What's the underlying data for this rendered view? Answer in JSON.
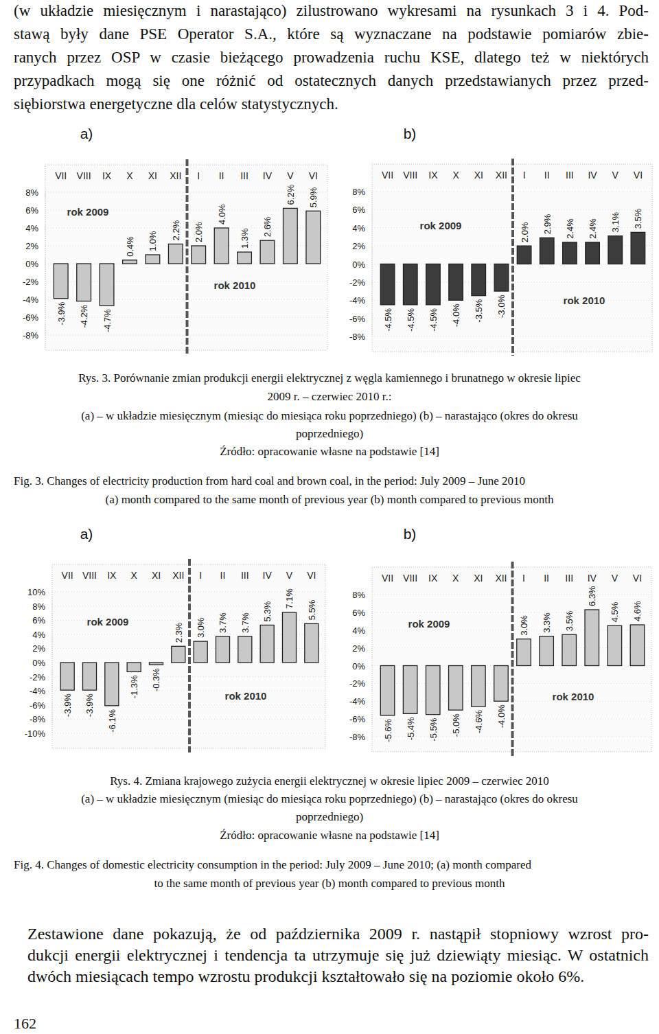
{
  "document": {
    "top_paragraph": [
      "(w układzie miesięcznym i narastająco) zilustrowano wykresami na rysunkach 3 i 4. Pod-",
      "stawą były dane PSE Operator S.A., które są wyznaczane na podstawie pomiarów zbie-",
      "ranych przez OSP w czasie bieżącego prowadzenia ruchu KSE, dlatego też w niektórych",
      "przypadkach mogą się one różnić od ostatecznych danych przedstawianych przez przed-",
      "siębiorstwa energetyczne dla celów statystycznych."
    ],
    "figures": [
      {
        "caption_pl": [
          "Rys. 3. Porównanie zmian produkcji energii elektrycznej z węgla kamiennego i brunatnego w okresie  lipiec",
          "2009 r. – czerwiec 2010 r.:",
          "(a) – w układzie miesięcznym (miesiąc do miesiąca roku poprzedniego) (b) – narastająco (okres do okresu",
          "poprzedniego)",
          "Źródło:  opracowanie własne na podstawie [14]"
        ],
        "caption_en": [
          "Fig. 3. Changes of electricity production from hard coal and brown coal, in the period: July 2009 – June 2010",
          "(a) month compared to the same month of previous year (b) month compared to previous month"
        ]
      },
      {
        "caption_pl": [
          "Rys. 4. Zmiana krajowego zużycia energii elektrycznej w okresie lipiec 2009 – czerwiec 2010",
          "(a) – w układzie miesięcznym (miesiąc do miesiąca roku poprzedniego) (b) – narastająco (okres do okresu",
          "poprzedniego)",
          "Źródło:  opracowanie własne na podstawie [14]"
        ],
        "caption_en": [
          "Fig. 4. Changes of domestic electricity consumption in the period: July 2009 – June 2010; (a) month compared",
          "to the same month of previous year (b) month compared to previous month"
        ]
      }
    ],
    "bottom_paragraph": [
      "Zestawione dane pokazują, że od października 2009 r. nastąpił stopniowy wzrost pro-",
      "dukcji energii elektrycznej i tendencja ta utrzymuje się już dziewiąty miesiąc. W ostatnich",
      "dwóch miesiącach tempo wzrostu produkcji kształtowało się na poziomie około 6%."
    ],
    "page_number": 162
  },
  "chart_data": [
    {
      "type": "bar",
      "title": "a)",
      "annotations": [
        "rok 2009",
        "rok 2010"
      ],
      "categories": [
        "VII",
        "VIII",
        "IX",
        "X",
        "XI",
        "XII",
        "I",
        "II",
        "III",
        "IV",
        "V",
        "VI"
      ],
      "values": [
        -3.9,
        -4.2,
        -4.7,
        0.4,
        1.0,
        2.2,
        2.0,
        4.0,
        1.3,
        2.6,
        6.2,
        5.9
      ],
      "value_labels": [
        "-3.9%",
        "-4.2%",
        "-4.7%",
        "0.4%",
        "1.0%",
        "2.2%",
        "2.0%",
        "4.0%",
        "1.3%",
        "2.6%",
        "6.2%",
        "5.9%"
      ],
      "color": "#c8c8c8",
      "ylim": [
        -8,
        8
      ],
      "yticks": [
        {
          "value": 8,
          "label": "8%"
        },
        {
          "value": 6,
          "label": "6%"
        },
        {
          "value": 4,
          "label": "4%"
        },
        {
          "value": 2,
          "label": "2%"
        },
        {
          "value": 0,
          "label": "0%"
        },
        {
          "value": -2,
          "label": "-2%"
        },
        {
          "value": -4,
          "label": "-4%"
        },
        {
          "value": -6,
          "label": "-6%"
        },
        {
          "value": -8,
          "label": "-8%"
        }
      ],
      "grid": true,
      "data_labels": true
    },
    {
      "type": "bar",
      "title": "b)",
      "annotations": [
        "rok 2009",
        "rok 2010"
      ],
      "categories": [
        "VII",
        "VIII",
        "IX",
        "X",
        "XI",
        "XII",
        "I",
        "II",
        "III",
        "IV",
        "V",
        "VI"
      ],
      "values": [
        -4.5,
        -4.5,
        -4.5,
        -4.0,
        -3.5,
        -3.0,
        2.0,
        2.9,
        2.4,
        2.4,
        3.1,
        3.5
      ],
      "value_labels": [
        "-4.5%",
        "-4.5%",
        "-4.5%",
        "-4.0%",
        "-3.5%",
        "-3.0%",
        "2.0%",
        "2.9%",
        "2.4%",
        "2.4%",
        "3.1%",
        "3.5%"
      ],
      "color": "#3c3c3c",
      "ylim": [
        -8,
        8
      ],
      "yticks": [
        {
          "value": 8,
          "label": "8%"
        },
        {
          "value": 6,
          "label": "6%"
        },
        {
          "value": 4,
          "label": "4%"
        },
        {
          "value": 2,
          "label": "2%"
        },
        {
          "value": 0,
          "label": "0%"
        },
        {
          "value": -2,
          "label": "-2%"
        },
        {
          "value": -4,
          "label": "-4%"
        },
        {
          "value": -6,
          "label": "-6%"
        },
        {
          "value": -8,
          "label": "-8%"
        }
      ],
      "grid": true,
      "data_labels": true
    },
    {
      "type": "bar",
      "title": "a)",
      "annotations": [
        "rok 2009",
        "rok 2010"
      ],
      "categories": [
        "VII",
        "VIII",
        "IX",
        "X",
        "XI",
        "XII",
        "I",
        "II",
        "III",
        "IV",
        "V",
        "VI"
      ],
      "values": [
        -3.9,
        -3.9,
        -6.1,
        -1.3,
        -0.3,
        2.3,
        3.0,
        3.7,
        3.7,
        5.3,
        7.1,
        5.5
      ],
      "value_labels": [
        "-3.9%",
        "-3.9%",
        "-6.1%",
        "-1.3%",
        "-0.3%",
        "2.3%",
        "3.0%",
        "3.7%",
        "3.7%",
        "5.3%",
        "7.1%",
        "5.5%"
      ],
      "color": "#c8c8c8",
      "ylim": [
        -10,
        10
      ],
      "yticks": [
        {
          "value": 10,
          "label": "10%"
        },
        {
          "value": 8,
          "label": "8%"
        },
        {
          "value": 6,
          "label": "6%"
        },
        {
          "value": 4,
          "label": "4%"
        },
        {
          "value": 2,
          "label": "2%"
        },
        {
          "value": 0,
          "label": "0%"
        },
        {
          "value": -2,
          "label": "-2%"
        },
        {
          "value": -4,
          "label": "-4%"
        },
        {
          "value": -6,
          "label": "-6%"
        },
        {
          "value": -8,
          "label": "-8%"
        },
        {
          "value": -10,
          "label": "-10%"
        }
      ],
      "grid": true,
      "data_labels": true
    },
    {
      "type": "bar",
      "title": "b)",
      "annotations": [
        "rok 2009",
        "rok 2010"
      ],
      "categories": [
        "VII",
        "VIII",
        "IX",
        "X",
        "XI",
        "XII",
        "I",
        "II",
        "III",
        "IV",
        "V",
        "VI"
      ],
      "values": [
        -5.6,
        -5.4,
        -5.5,
        -5.0,
        -4.6,
        -4.0,
        3.0,
        3.3,
        3.5,
        6.3,
        4.5,
        4.6
      ],
      "value_labels": [
        "-5.6%",
        "-5.4%",
        "-5.5%",
        "-5.0%",
        "-4.6%",
        "-4.0%",
        "3.0%",
        "3.3%",
        "3.5%",
        "6.3%",
        "4.5%",
        "4.6%"
      ],
      "color": "#c8c8c8",
      "ylim": [
        -8,
        8
      ],
      "yticks": [
        {
          "value": 8,
          "label": "8%"
        },
        {
          "value": 6,
          "label": "6%"
        },
        {
          "value": 4,
          "label": "4%"
        },
        {
          "value": 2,
          "label": "2%"
        },
        {
          "value": 0,
          "label": "0%"
        },
        {
          "value": -2,
          "label": "-2%"
        },
        {
          "value": -4,
          "label": "-4%"
        },
        {
          "value": -6,
          "label": "-6%"
        },
        {
          "value": -8,
          "label": "-8%"
        }
      ],
      "grid": true,
      "data_labels": true
    }
  ]
}
